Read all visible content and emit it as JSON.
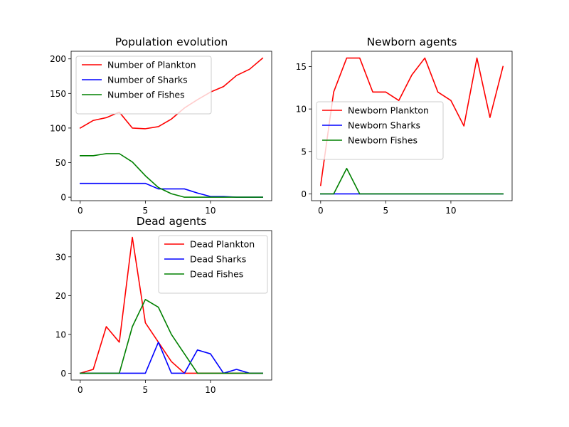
{
  "chart_data": [
    {
      "type": "line",
      "title": "Population evolution",
      "xlabel": "",
      "ylabel": "",
      "x": [
        0,
        1,
        2,
        3,
        4,
        5,
        6,
        7,
        8,
        9,
        10,
        11,
        12,
        13,
        14
      ],
      "xlim": [
        -0.7,
        14.7
      ],
      "ylim": [
        -5.05,
        211.05
      ],
      "xticks": [
        0,
        5,
        10
      ],
      "yticks": [
        0,
        50,
        100,
        150,
        200
      ],
      "legend_position": "upper-left",
      "grid": false,
      "series": [
        {
          "name": "Number of Plankton",
          "color": "#ff0000",
          "values": [
            100,
            111,
            115,
            123,
            100,
            99,
            102,
            113,
            129,
            141,
            152,
            160,
            176,
            185,
            201
          ]
        },
        {
          "name": "Number of Sharks",
          "color": "#0000ff",
          "values": [
            20,
            20,
            20,
            20,
            20,
            20,
            12,
            12,
            12,
            6,
            1,
            1,
            0,
            0,
            0
          ]
        },
        {
          "name": "Number of Fishes",
          "color": "#008000",
          "values": [
            60,
            60,
            63,
            63,
            51,
            31,
            14,
            5,
            0,
            0,
            0,
            0,
            0,
            0,
            0
          ]
        }
      ]
    },
    {
      "type": "line",
      "title": "Newborn agents",
      "xlabel": "",
      "ylabel": "",
      "x": [
        0,
        1,
        2,
        3,
        4,
        5,
        6,
        7,
        8,
        9,
        10,
        11,
        12,
        13,
        14
      ],
      "xlim": [
        -0.7,
        14.7
      ],
      "ylim": [
        -0.8,
        16.8
      ],
      "xticks": [
        0,
        5,
        10
      ],
      "yticks": [
        0,
        5,
        10,
        15
      ],
      "legend_position": "center-left",
      "grid": false,
      "series": [
        {
          "name": "Newborn Plankton",
          "color": "#ff0000",
          "values": [
            1,
            12,
            16,
            16,
            12,
            12,
            11,
            14,
            16,
            12,
            11,
            8,
            16,
            9,
            15
          ]
        },
        {
          "name": "Newborn Sharks",
          "color": "#0000ff",
          "values": [
            0,
            0,
            0,
            0,
            0,
            0,
            0,
            0,
            0,
            0,
            0,
            0,
            0,
            0,
            0
          ]
        },
        {
          "name": "Newborn Fishes",
          "color": "#008000",
          "values": [
            0,
            0,
            3,
            0,
            0,
            0,
            0,
            0,
            0,
            0,
            0,
            0,
            0,
            0,
            0
          ]
        }
      ]
    },
    {
      "type": "line",
      "title": "Dead agents",
      "xlabel": "",
      "ylabel": "",
      "x": [
        0,
        1,
        2,
        3,
        4,
        5,
        6,
        7,
        8,
        9,
        10,
        11,
        12,
        13,
        14
      ],
      "xlim": [
        -0.7,
        14.7
      ],
      "ylim": [
        -1.75,
        36.75
      ],
      "xticks": [
        0,
        5,
        10
      ],
      "yticks": [
        0,
        10,
        20,
        30
      ],
      "legend_position": "upper-right",
      "grid": false,
      "series": [
        {
          "name": "Dead Plankton",
          "color": "#ff0000",
          "values": [
            0,
            1,
            12,
            8,
            35,
            13,
            8,
            3,
            0,
            0,
            0,
            0,
            0,
            0,
            0
          ]
        },
        {
          "name": "Dead Sharks",
          "color": "#0000ff",
          "values": [
            0,
            0,
            0,
            0,
            0,
            0,
            8,
            0,
            0,
            6,
            5,
            0,
            1,
            0,
            0
          ]
        },
        {
          "name": "Dead Fishes",
          "color": "#008000",
          "values": [
            0,
            0,
            0,
            0,
            12,
            19,
            17,
            10,
            5,
            0,
            0,
            0,
            0,
            0,
            0
          ]
        }
      ]
    }
  ]
}
